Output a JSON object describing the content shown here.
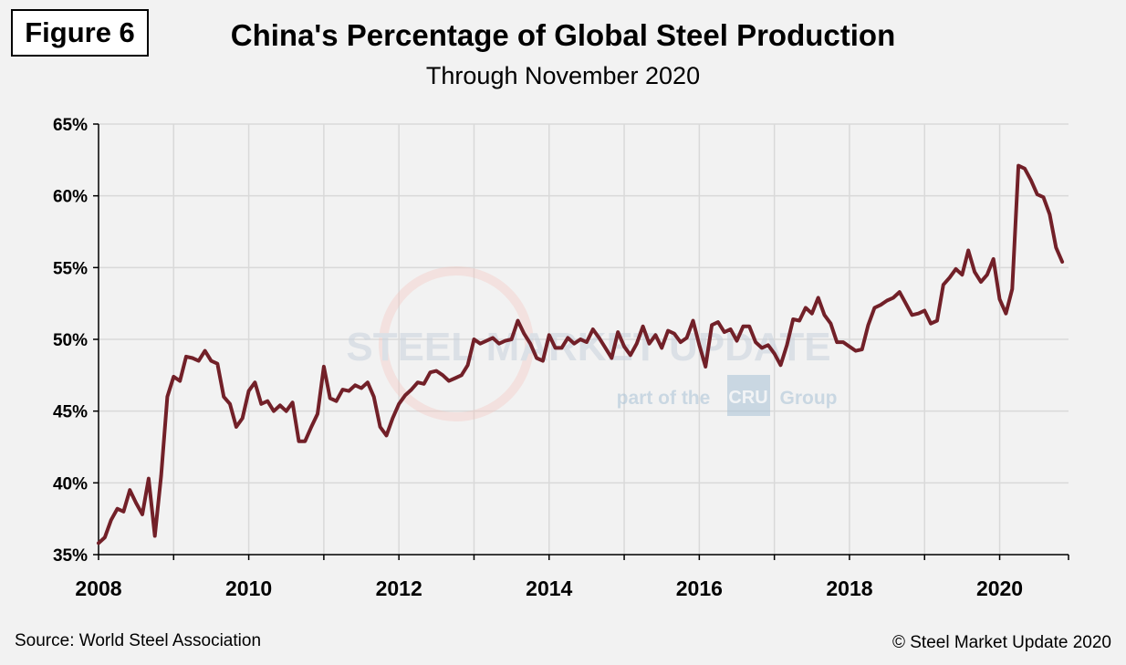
{
  "figure_label": "Figure 6",
  "footer": {
    "source": "Source: World Steel Association",
    "copyright": "© Steel Market Update 2020"
  },
  "watermark": {
    "brand": "STEEL MARKET UPDATE",
    "tagline_pre": "part of the",
    "tagline_logo": "CRU",
    "tagline_post": "Group"
  },
  "colors": {
    "line": "#722028",
    "grid": "#d9d9d9",
    "background": "#f2f2f2"
  },
  "chart_data": {
    "type": "line",
    "title": "China's Percentage of Global Steel Production",
    "subtitle": "Through November 2020",
    "xlabel": "",
    "ylabel": "",
    "xlim": [
      2008.0,
      2020.917
    ],
    "ylim": [
      35,
      65
    ],
    "x_ticks": [
      2008,
      2010,
      2012,
      2014,
      2016,
      2018,
      2020
    ],
    "x_tick_labels": [
      "2008",
      "2010",
      "2012",
      "2014",
      "2016",
      "2018",
      "2020"
    ],
    "y_ticks": [
      35,
      40,
      45,
      50,
      55,
      60,
      65
    ],
    "y_tick_labels": [
      "35%",
      "40%",
      "45%",
      "50%",
      "55%",
      "60%",
      "65%"
    ],
    "grid": true,
    "legend": "none",
    "series": [
      {
        "start": "2008-01",
        "frequency": "monthly",
        "values": [
          35.8,
          36.2,
          37.4,
          38.2,
          38.0,
          39.5,
          38.6,
          37.8,
          40.3,
          36.3,
          40.5,
          46.0,
          47.4,
          47.1,
          48.8,
          48.7,
          48.5,
          49.2,
          48.5,
          48.3,
          46.0,
          45.5,
          43.9,
          44.5,
          46.4,
          47.0,
          45.5,
          45.7,
          45.0,
          45.4,
          45.0,
          45.6,
          42.9,
          42.9,
          43.9,
          44.8,
          48.1,
          45.9,
          45.7,
          46.5,
          46.4,
          46.8,
          46.6,
          47.0,
          46.0,
          43.9,
          43.3,
          44.5,
          45.5,
          46.1,
          46.5,
          47.0,
          46.9,
          47.7,
          47.8,
          47.5,
          47.1,
          47.3,
          47.5,
          48.2,
          50.0,
          49.7,
          49.9,
          50.1,
          49.7,
          49.9,
          50.0,
          51.3,
          50.4,
          49.7,
          48.7,
          48.5,
          50.3,
          49.4,
          49.4,
          50.1,
          49.7,
          50.0,
          49.8,
          50.7,
          50.1,
          49.4,
          48.7,
          50.5,
          49.5,
          48.9,
          49.7,
          50.9,
          49.7,
          50.3,
          49.4,
          50.6,
          50.4,
          49.8,
          50.1,
          51.3,
          49.6,
          48.1,
          51.0,
          51.2,
          50.5,
          50.7,
          49.9,
          50.9,
          50.9,
          49.8,
          49.4,
          49.6,
          49.0,
          48.2,
          49.6,
          51.4,
          51.3,
          52.2,
          51.8,
          52.9,
          51.7,
          51.1,
          49.8,
          49.8,
          49.5,
          49.2,
          49.3,
          51.0,
          52.2,
          52.4,
          52.7,
          52.9,
          53.3,
          52.5,
          51.7,
          51.8,
          52.0,
          51.1,
          51.3,
          53.8,
          54.3,
          54.9,
          54.5,
          56.2,
          54.7,
          54.0,
          54.5,
          55.6,
          52.8,
          51.8,
          53.5,
          62.1,
          61.9,
          61.1,
          60.1,
          59.9,
          58.7,
          56.4,
          55.4
        ]
      }
    ]
  }
}
